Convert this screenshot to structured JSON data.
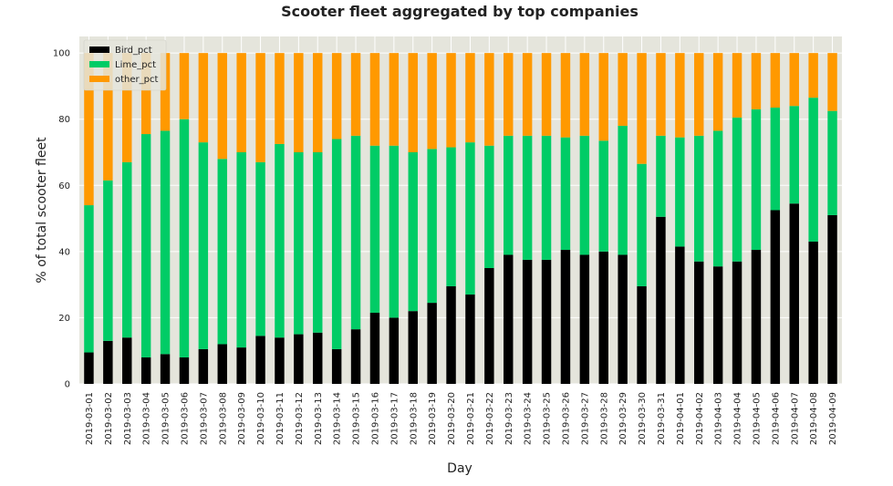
{
  "chart_data": {
    "type": "bar",
    "stacked": true,
    "title": "Scooter fleet aggregated by top companies",
    "xlabel": "Day",
    "ylabel": "% of total scooter fleet",
    "ylim": [
      0,
      105
    ],
    "yticks": [
      0,
      20,
      40,
      60,
      80,
      100
    ],
    "grid": true,
    "legend_position": "top-left",
    "plot_background": "#e5e5dc",
    "grid_color": "#ffffff",
    "categories": [
      "2019-03-01",
      "2019-03-02",
      "2019-03-03",
      "2019-03-04",
      "2019-03-05",
      "2019-03-06",
      "2019-03-07",
      "2019-03-08",
      "2019-03-09",
      "2019-03-10",
      "2019-03-11",
      "2019-03-12",
      "2019-03-13",
      "2019-03-14",
      "2019-03-15",
      "2019-03-16",
      "2019-03-17",
      "2019-03-18",
      "2019-03-19",
      "2019-03-20",
      "2019-03-21",
      "2019-03-22",
      "2019-03-23",
      "2019-03-24",
      "2019-03-25",
      "2019-03-26",
      "2019-03-27",
      "2019-03-28",
      "2019-03-29",
      "2019-03-30",
      "2019-03-31",
      "2019-04-01",
      "2019-04-02",
      "2019-04-03",
      "2019-04-04",
      "2019-04-05",
      "2019-04-06",
      "2019-04-07",
      "2019-04-08",
      "2019-04-09"
    ],
    "series": [
      {
        "name": "Bird_pct",
        "color": "#000000",
        "values": [
          9.5,
          13,
          14,
          8,
          9,
          8,
          10.5,
          12,
          11,
          14.5,
          14,
          15,
          15.5,
          10.5,
          16.5,
          21.5,
          20,
          22,
          24.5,
          29.5,
          27,
          35,
          39,
          37.5,
          37.5,
          40.5,
          39,
          40,
          39,
          29.5,
          50.5,
          41.5,
          37,
          35.5,
          37,
          40.5,
          52.5,
          54.5,
          43,
          51
        ]
      },
      {
        "name": "Lime_pct",
        "color": "#00cc66",
        "values": [
          44.5,
          48.5,
          53,
          67.5,
          67.5,
          72,
          62.5,
          56,
          59,
          52.5,
          58.5,
          55,
          54.5,
          63.5,
          58.5,
          50.5,
          52,
          48,
          46.5,
          42,
          46,
          37,
          36,
          37.5,
          37.5,
          34,
          36,
          33.5,
          39,
          37,
          24.5,
          33,
          38,
          41,
          43.5,
          42.5,
          31,
          29.5,
          43.5,
          31.5
        ]
      },
      {
        "name": "other_pct",
        "color": "#ff9900",
        "values": [
          46,
          38.5,
          33,
          24.5,
          23.5,
          20,
          27,
          32,
          30,
          33,
          27.5,
          30,
          30,
          26,
          25,
          28,
          28,
          30,
          29,
          28.5,
          27,
          28,
          25,
          25,
          25,
          25.5,
          25,
          26.5,
          22,
          33.5,
          25,
          25.5,
          25,
          23.5,
          19.5,
          17,
          16.5,
          16,
          13.5,
          17.5
        ]
      }
    ]
  }
}
